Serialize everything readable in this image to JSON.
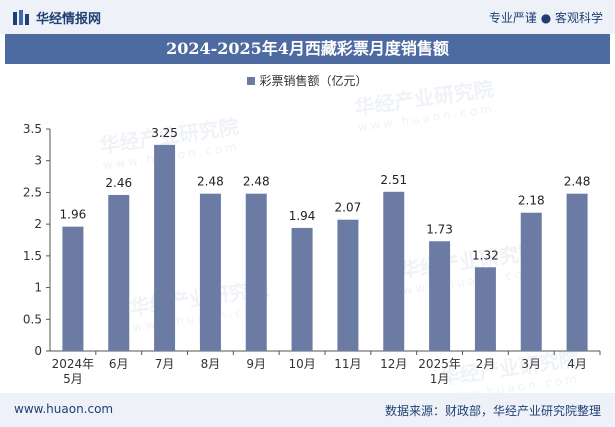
{
  "header": {
    "logo_text": "华经情报网",
    "tagline": "专业严谨 ● 客观科学"
  },
  "footer": {
    "website": "www.huaon.com",
    "source": "数据来源：财政部，华经产业研究院整理"
  },
  "watermark": {
    "name": "华经产业研究院",
    "url": "www.huaon.com"
  },
  "colors": {
    "bar": "#6b7ba4",
    "title_bg": "#4d6aa1",
    "band_bg": "#eef2f8",
    "text_dark": "#1f3f73"
  },
  "chart_data": {
    "type": "bar",
    "title": "2024-2025年4月西藏彩票月度销售额",
    "categories": [
      "2024年\n5月",
      "6月",
      "7月",
      "8月",
      "9月",
      "10月",
      "11月",
      "12月",
      "2025年\n1月",
      "2月",
      "3月",
      "4月"
    ],
    "series": [
      {
        "name": "彩票销售额（亿元）",
        "values": [
          1.96,
          2.46,
          3.25,
          2.48,
          2.48,
          1.94,
          2.07,
          2.51,
          1.73,
          1.32,
          2.18,
          2.48
        ]
      }
    ],
    "y_ticks": [
      "0",
      "0.5",
      "1",
      "1.5",
      "2",
      "2.5",
      "3",
      "3.5"
    ],
    "ylim": [
      0,
      3.5
    ],
    "grid": false,
    "legend_position": "top-center"
  }
}
